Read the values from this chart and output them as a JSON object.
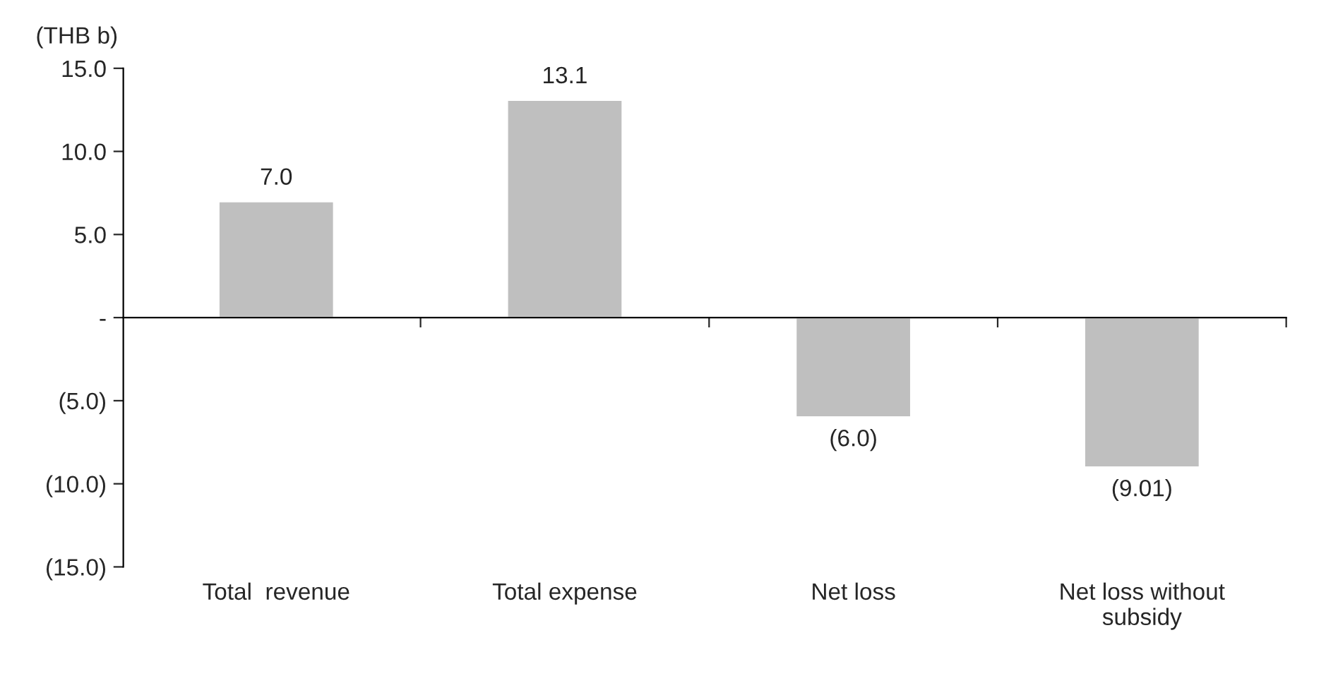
{
  "chart_data": {
    "type": "bar",
    "ylabel": "(THB b)",
    "categories": [
      "Total  revenue",
      "Total expense",
      "Net loss",
      "Net loss without\nsubsidy"
    ],
    "values": [
      7.0,
      13.1,
      -6.0,
      -9.01
    ],
    "color": "#bfbfbf",
    "value_labels": [
      "7.0",
      "13.1",
      "(6.0)",
      "(9.01)"
    ],
    "ylim": [
      -15,
      15
    ],
    "yticks": [
      {
        "value": -15,
        "label": "(15.0)"
      },
      {
        "value": -10,
        "label": "(10.0)"
      },
      {
        "value": -5,
        "label": "(5.0)"
      },
      {
        "value": 0,
        "label": "-"
      },
      {
        "value": 5,
        "label": "5.0"
      },
      {
        "value": 10,
        "label": "10.0"
      },
      {
        "value": 15,
        "label": "15.0"
      }
    ],
    "legend": false
  }
}
